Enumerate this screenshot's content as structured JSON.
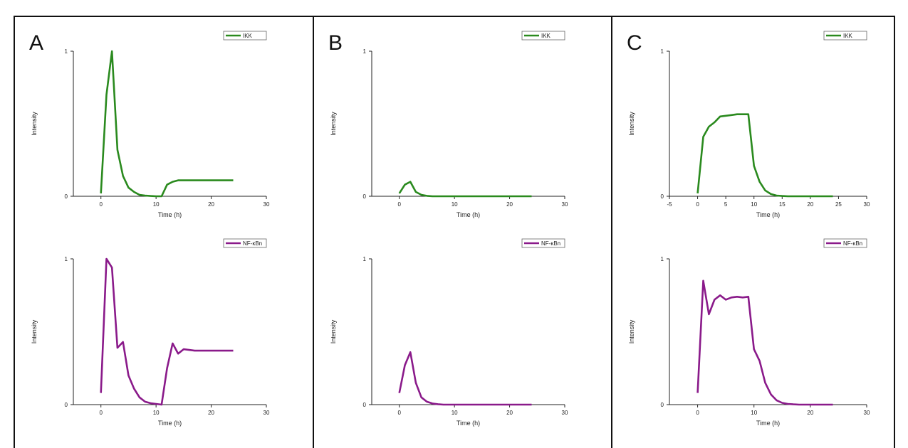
{
  "panels": [
    {
      "label": "A"
    },
    {
      "label": "B"
    },
    {
      "label": "C"
    }
  ],
  "colors": {
    "ikk": "#2a8a1e",
    "nfkb": "#8a1a8a",
    "axis": "#222222"
  },
  "chart_data": [
    {
      "type": "line",
      "panel": "A",
      "xlabel": "Time (h)",
      "ylabel": "Intensity",
      "xlim": [
        -5,
        30
      ],
      "ylim": [
        0,
        1
      ],
      "xticks": [
        0,
        10,
        20,
        30
      ],
      "yticks": [
        0,
        1
      ],
      "legend_position": "top-right",
      "series": [
        {
          "name": "IKK",
          "color": "#2a8a1e",
          "x": [
            0,
            1,
            2,
            3,
            4,
            5,
            6,
            7,
            8,
            9,
            10,
            11,
            12,
            13,
            14,
            15,
            16,
            17,
            18,
            19,
            20,
            21,
            22,
            23,
            24
          ],
          "y": [
            0.02,
            0.7,
            1.0,
            0.32,
            0.14,
            0.06,
            0.03,
            0.01,
            0.005,
            0.002,
            0.0,
            0.0,
            0.08,
            0.1,
            0.11,
            0.11,
            0.11,
            0.11,
            0.11,
            0.11,
            0.11,
            0.11,
            0.11,
            0.11,
            0.11
          ]
        }
      ]
    },
    {
      "type": "line",
      "panel": "A",
      "xlabel": "Time (h)",
      "ylabel": "Intensity",
      "xlim": [
        -5,
        30
      ],
      "ylim": [
        0,
        1
      ],
      "xticks": [
        0,
        10,
        20,
        30
      ],
      "yticks": [
        0,
        1
      ],
      "legend_position": "top-right",
      "series": [
        {
          "name": "NF-κBn",
          "color": "#8a1a8a",
          "x": [
            0,
            1,
            2,
            3,
            4,
            5,
            6,
            7,
            8,
            9,
            10,
            11,
            12,
            13,
            14,
            15,
            16,
            17,
            18,
            19,
            20,
            21,
            22,
            23,
            24
          ],
          "y": [
            0.08,
            1.0,
            0.94,
            0.39,
            0.43,
            0.2,
            0.11,
            0.05,
            0.02,
            0.01,
            0.005,
            0.0,
            0.25,
            0.42,
            0.35,
            0.38,
            0.375,
            0.37,
            0.37,
            0.37,
            0.37,
            0.37,
            0.37,
            0.37,
            0.37
          ]
        }
      ]
    },
    {
      "type": "line",
      "panel": "B",
      "xlabel": "Time (h)",
      "ylabel": "Intensity",
      "xlim": [
        -5,
        30
      ],
      "ylim": [
        0,
        1
      ],
      "xticks": [
        0,
        10,
        20,
        30
      ],
      "yticks": [
        0,
        1
      ],
      "legend_position": "top-right",
      "series": [
        {
          "name": "IKK",
          "color": "#2a8a1e",
          "x": [
            0,
            1,
            2,
            3,
            4,
            5,
            6,
            7,
            8,
            9,
            10,
            11,
            12,
            13,
            14,
            15,
            16,
            17,
            18,
            19,
            20,
            21,
            22,
            23,
            24
          ],
          "y": [
            0.02,
            0.08,
            0.1,
            0.03,
            0.01,
            0.003,
            0.0,
            0.0,
            0.0,
            0.0,
            0.0,
            0.0,
            0.0,
            0.0,
            0.0,
            0.0,
            0.0,
            0.0,
            0.0,
            0.0,
            0.0,
            0.0,
            0.0,
            0.0,
            0.0
          ]
        }
      ]
    },
    {
      "type": "line",
      "panel": "B",
      "xlabel": "Time (h)",
      "ylabel": "Intensity",
      "xlim": [
        -5,
        30
      ],
      "ylim": [
        0,
        1
      ],
      "xticks": [
        0,
        10,
        20,
        30
      ],
      "yticks": [
        0,
        1
      ],
      "legend_position": "top-right",
      "series": [
        {
          "name": "NF-κBn",
          "color": "#8a1a8a",
          "x": [
            0,
            1,
            2,
            3,
            4,
            5,
            6,
            7,
            8,
            9,
            10,
            11,
            12,
            13,
            14,
            15,
            16,
            17,
            18,
            19,
            20,
            21,
            22,
            23,
            24
          ],
          "y": [
            0.08,
            0.27,
            0.36,
            0.15,
            0.05,
            0.02,
            0.008,
            0.003,
            0.0,
            0.0,
            0.0,
            0.0,
            0.0,
            0.0,
            0.0,
            0.0,
            0.0,
            0.0,
            0.0,
            0.0,
            0.0,
            0.0,
            0.0,
            0.0,
            0.0
          ]
        }
      ]
    },
    {
      "type": "line",
      "panel": "C",
      "xlabel": "Time (h)",
      "ylabel": "Intensity",
      "xlim": [
        -5,
        30
      ],
      "ylim": [
        0,
        1
      ],
      "xticks": [
        -5,
        0,
        5,
        10,
        15,
        20,
        25,
        30
      ],
      "yticks": [
        0,
        1
      ],
      "legend_position": "top-right",
      "series": [
        {
          "name": "IKK",
          "color": "#2a8a1e",
          "x": [
            0,
            1,
            2,
            3,
            4,
            5,
            6,
            7,
            8,
            9,
            10,
            11,
            12,
            13,
            14,
            15,
            16,
            17,
            18,
            19,
            20,
            21,
            22,
            23,
            24
          ],
          "y": [
            0.02,
            0.41,
            0.48,
            0.51,
            0.55,
            0.555,
            0.56,
            0.565,
            0.565,
            0.565,
            0.21,
            0.1,
            0.04,
            0.015,
            0.005,
            0.002,
            0.0,
            0.0,
            0.0,
            0.0,
            0.0,
            0.0,
            0.0,
            0.0,
            0.0
          ]
        }
      ]
    },
    {
      "type": "line",
      "panel": "C",
      "xlabel": "Time (h)",
      "ylabel": "Intensity",
      "xlim": [
        -5,
        30
      ],
      "ylim": [
        0,
        1
      ],
      "xticks": [
        0,
        10,
        20,
        30
      ],
      "yticks": [
        0,
        1
      ],
      "legend_position": "top-right",
      "series": [
        {
          "name": "NF-κBn",
          "color": "#8a1a8a",
          "x": [
            0,
            1,
            2,
            3,
            4,
            5,
            6,
            7,
            8,
            9,
            10,
            11,
            12,
            13,
            14,
            15,
            16,
            17,
            18,
            19,
            20,
            21,
            22,
            23,
            24
          ],
          "y": [
            0.08,
            0.85,
            0.62,
            0.72,
            0.75,
            0.72,
            0.735,
            0.74,
            0.735,
            0.74,
            0.38,
            0.3,
            0.15,
            0.07,
            0.03,
            0.012,
            0.005,
            0.002,
            0.0,
            0.0,
            0.0,
            0.0,
            0.0,
            0.0,
            0.0
          ]
        }
      ]
    }
  ]
}
